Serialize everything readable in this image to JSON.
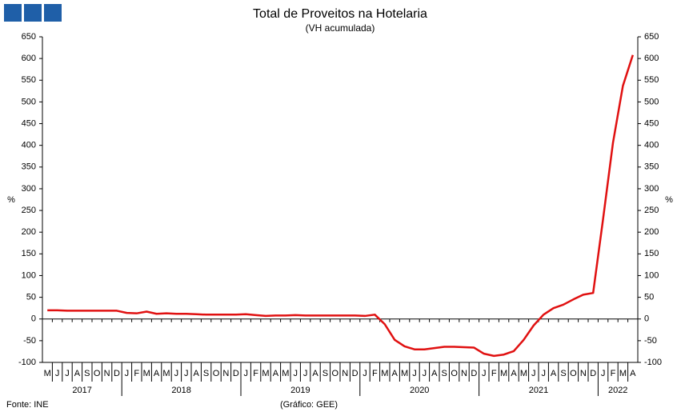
{
  "chart_data": {
    "type": "line",
    "title": "Total de Proveitos na Hotelaria",
    "subtitle": "(VH acumulada)",
    "ylabel": "%",
    "y2label": "%",
    "source": "Fonte: INE",
    "credit": "(Gráfico: GEE)",
    "categories": [
      "M",
      "J",
      "J",
      "A",
      "S",
      "O",
      "N",
      "D",
      "J",
      "F",
      "M",
      "A",
      "M",
      "J",
      "J",
      "A",
      "S",
      "O",
      "N",
      "D",
      "J",
      "F",
      "M",
      "A",
      "M",
      "J",
      "J",
      "A",
      "S",
      "O",
      "N",
      "D",
      "J",
      "F",
      "M",
      "A",
      "M",
      "J",
      "J",
      "A",
      "S",
      "O",
      "N",
      "D",
      "J",
      "F",
      "M",
      "A",
      "M",
      "J",
      "J",
      "A",
      "S",
      "O",
      "N",
      "D",
      "J",
      "F",
      "M",
      "A"
    ],
    "years": [
      "2017",
      "2018",
      "2019",
      "2020",
      "2021",
      "2022"
    ],
    "series": [
      {
        "name": "Total de Proveitos",
        "color": "#e01010",
        "values": [
          20,
          20,
          19,
          19,
          19,
          19,
          19,
          19,
          14,
          13,
          17,
          12,
          13,
          12,
          12,
          11,
          10,
          10,
          10,
          10,
          11,
          9,
          7,
          8,
          8,
          9,
          8,
          8,
          8,
          8,
          8,
          8,
          7,
          10,
          -12,
          -48,
          -63,
          -70,
          -70,
          -67,
          -64,
          -64,
          -65,
          -66,
          -80,
          -85,
          -82,
          -74,
          -48,
          -15,
          10,
          25,
          33,
          45,
          56,
          60,
          230,
          406,
          537,
          608
        ]
      }
    ],
    "ylim": [
      -100,
      650
    ],
    "yticks": [
      -100,
      -50,
      0,
      50,
      100,
      150,
      200,
      250,
      300,
      350,
      400,
      450,
      500,
      550,
      600,
      650
    ],
    "y2lim": [
      -100,
      650
    ],
    "y2ticks": [
      -100,
      -50,
      0,
      50,
      100,
      150,
      200,
      250,
      300,
      350,
      400,
      450,
      500,
      550,
      600,
      650
    ],
    "grid": false
  }
}
